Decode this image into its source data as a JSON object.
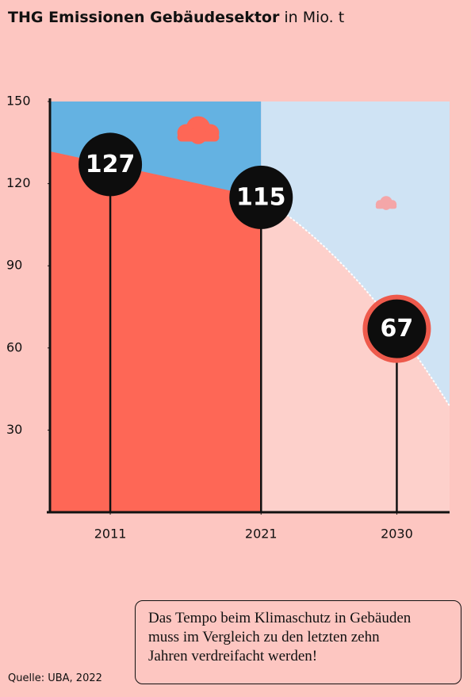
{
  "chart_data": {
    "type": "area-bubble",
    "title": "THG Emissionen Gebäudesektor",
    "title_unit": "in Mio. t",
    "x": [
      2011,
      2021,
      2030
    ],
    "values": [
      127,
      115,
      67
    ],
    "xlim": [
      2007,
      2033.5
    ],
    "xticks": [
      2011,
      2021,
      2030
    ],
    "ylim": [
      0,
      150
    ],
    "yticks": [
      150,
      120,
      90,
      60,
      30
    ],
    "colors": {
      "past_area": "#fe6756",
      "future_area": "#fdd0cb",
      "past_sky": "#64b2e2",
      "future_sky": "#cfe3f4",
      "bubble": "#0d0d0d",
      "target_ring": "#ee5a4c"
    },
    "note": [
      "Das Tempo beim Klimaschutz in Gebäuden",
      "muss im Vergleich zu den letzten zehn",
      "Jahren verdreifacht werden!"
    ],
    "source": "Quelle: UBA, 2022"
  }
}
